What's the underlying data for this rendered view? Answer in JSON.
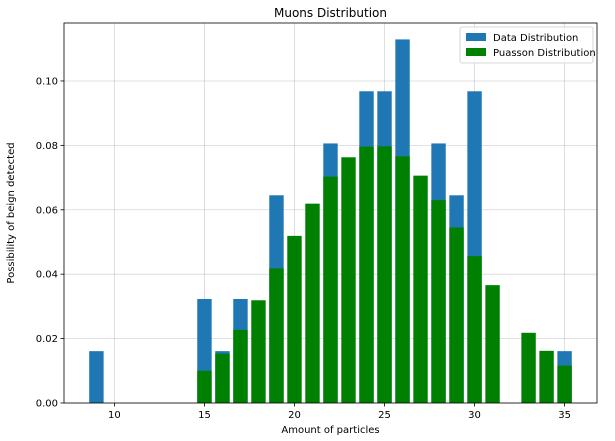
{
  "chart_data": {
    "type": "bar",
    "title": "Muons Distribution",
    "xlabel": "Amount of particles",
    "ylabel": "Possibility of beign detected",
    "xlim": [
      7.2,
      36.8
    ],
    "ylim": [
      0,
      0.118
    ],
    "xticks": [
      10,
      15,
      20,
      25,
      30,
      35
    ],
    "yticks": [
      0.0,
      0.02,
      0.04,
      0.06,
      0.08,
      0.1
    ],
    "ytick_labels": [
      "0.00",
      "0.02",
      "0.04",
      "0.06",
      "0.08",
      "0.10"
    ],
    "grid": true,
    "legend_position": "top-right",
    "series": [
      {
        "name": "Data Distribution",
        "color": "#1f77b4",
        "x": [
          9,
          15,
          16,
          17,
          19,
          22,
          24,
          25,
          26,
          28,
          29,
          30,
          35
        ],
        "values": [
          0.0161,
          0.0323,
          0.0161,
          0.0323,
          0.0645,
          0.0806,
          0.0968,
          0.0968,
          0.1129,
          0.0806,
          0.0645,
          0.0968,
          0.0161
        ]
      },
      {
        "name": "Puasson Distribution",
        "color": "#008000",
        "x": [
          15,
          16,
          17,
          18,
          19,
          20,
          21,
          22,
          23,
          24,
          25,
          26,
          27,
          28,
          29,
          30,
          31,
          33,
          34,
          35
        ],
        "values": [
          0.01,
          0.0153,
          0.0227,
          0.0319,
          0.0418,
          0.0519,
          0.0619,
          0.0703,
          0.0763,
          0.0796,
          0.0797,
          0.0766,
          0.0706,
          0.063,
          0.0545,
          0.0456,
          0.0366,
          0.0218,
          0.0162,
          0.0116
        ]
      }
    ]
  }
}
